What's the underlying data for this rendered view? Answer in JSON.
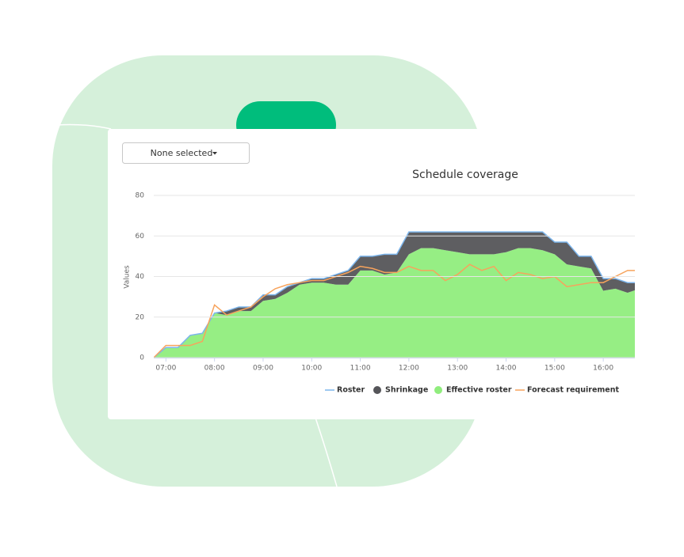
{
  "dropdown": "None selected",
  "chart_data": {
    "type": "area",
    "title": "Schedule coverage",
    "y_label": "Values",
    "x": [
      6.75,
      7,
      7.25,
      7.5,
      7.75,
      8,
      8.25,
      8.5,
      8.75,
      9,
      9.25,
      9.5,
      9.75,
      10,
      10.25,
      10.5,
      10.75,
      11,
      11.25,
      11.5,
      11.75,
      12,
      12.25,
      12.5,
      12.75,
      13,
      13.25,
      13.5,
      13.75,
      14,
      14.25,
      14.5,
      14.75,
      15,
      15.25,
      15.5,
      15.75,
      16,
      16.25,
      16.5,
      16.75
    ],
    "xlim": [
      6.75,
      16.65
    ],
    "xticks": [
      {
        "value": 7,
        "label": "07:00"
      },
      {
        "value": 8,
        "label": "08:00"
      },
      {
        "value": 9,
        "label": "09:00"
      },
      {
        "value": 10,
        "label": "10:00"
      },
      {
        "value": 11,
        "label": "11:00"
      },
      {
        "value": 12,
        "label": "12:00"
      },
      {
        "value": 13,
        "label": "13:00"
      },
      {
        "value": 14,
        "label": "14:00"
      },
      {
        "value": 15,
        "label": "15:00"
      },
      {
        "value": 16,
        "label": "16:00"
      }
    ],
    "ylim": [
      0,
      80
    ],
    "yticks": [
      0,
      20,
      40,
      60,
      80
    ],
    "grid": true,
    "stacked": true,
    "legend": "bottom",
    "series": [
      {
        "name": "Roster",
        "type": "line",
        "color": "#7cb5ec",
        "values": [
          0,
          5,
          5,
          11,
          12,
          22,
          23,
          25,
          25,
          31,
          31,
          35,
          37,
          39,
          39,
          41,
          43,
          50,
          50,
          51,
          51,
          62,
          62,
          62,
          62,
          62,
          62,
          62,
          62,
          62,
          62,
          62,
          62,
          57,
          57,
          50,
          50,
          39,
          39,
          37,
          37
        ]
      },
      {
        "name": "Shrinkage",
        "type": "area",
        "color": "#555559",
        "values": [
          0,
          0,
          0,
          0,
          0,
          0,
          2,
          2,
          2,
          3,
          2,
          3,
          1,
          2,
          2,
          5,
          7,
          7,
          7,
          10,
          9,
          11,
          8,
          8,
          9,
          10,
          11,
          11,
          11,
          10,
          8,
          8,
          9,
          6,
          11,
          5,
          6,
          6,
          5,
          5,
          3
        ]
      },
      {
        "name": "Effective roster",
        "type": "area",
        "color": "#90ed7d",
        "values": [
          0,
          5,
          5,
          11,
          12,
          22,
          21,
          23,
          23,
          28,
          29,
          32,
          36,
          37,
          37,
          36,
          36,
          43,
          43,
          41,
          42,
          51,
          54,
          54,
          53,
          52,
          51,
          51,
          51,
          52,
          54,
          54,
          53,
          51,
          46,
          45,
          44,
          33,
          34,
          32,
          34
        ]
      },
      {
        "name": "Forecast requirement",
        "type": "line",
        "color": "#f7a35c",
        "values": [
          0,
          6,
          6,
          6,
          8,
          26,
          21,
          23,
          25,
          30,
          34,
          36,
          37,
          38,
          38,
          40,
          42,
          45,
          44,
          42,
          42,
          45,
          43,
          43,
          38,
          41,
          46,
          43,
          45,
          38,
          42,
          41,
          39,
          40,
          35,
          36,
          37,
          37,
          40,
          43,
          43
        ]
      }
    ]
  }
}
